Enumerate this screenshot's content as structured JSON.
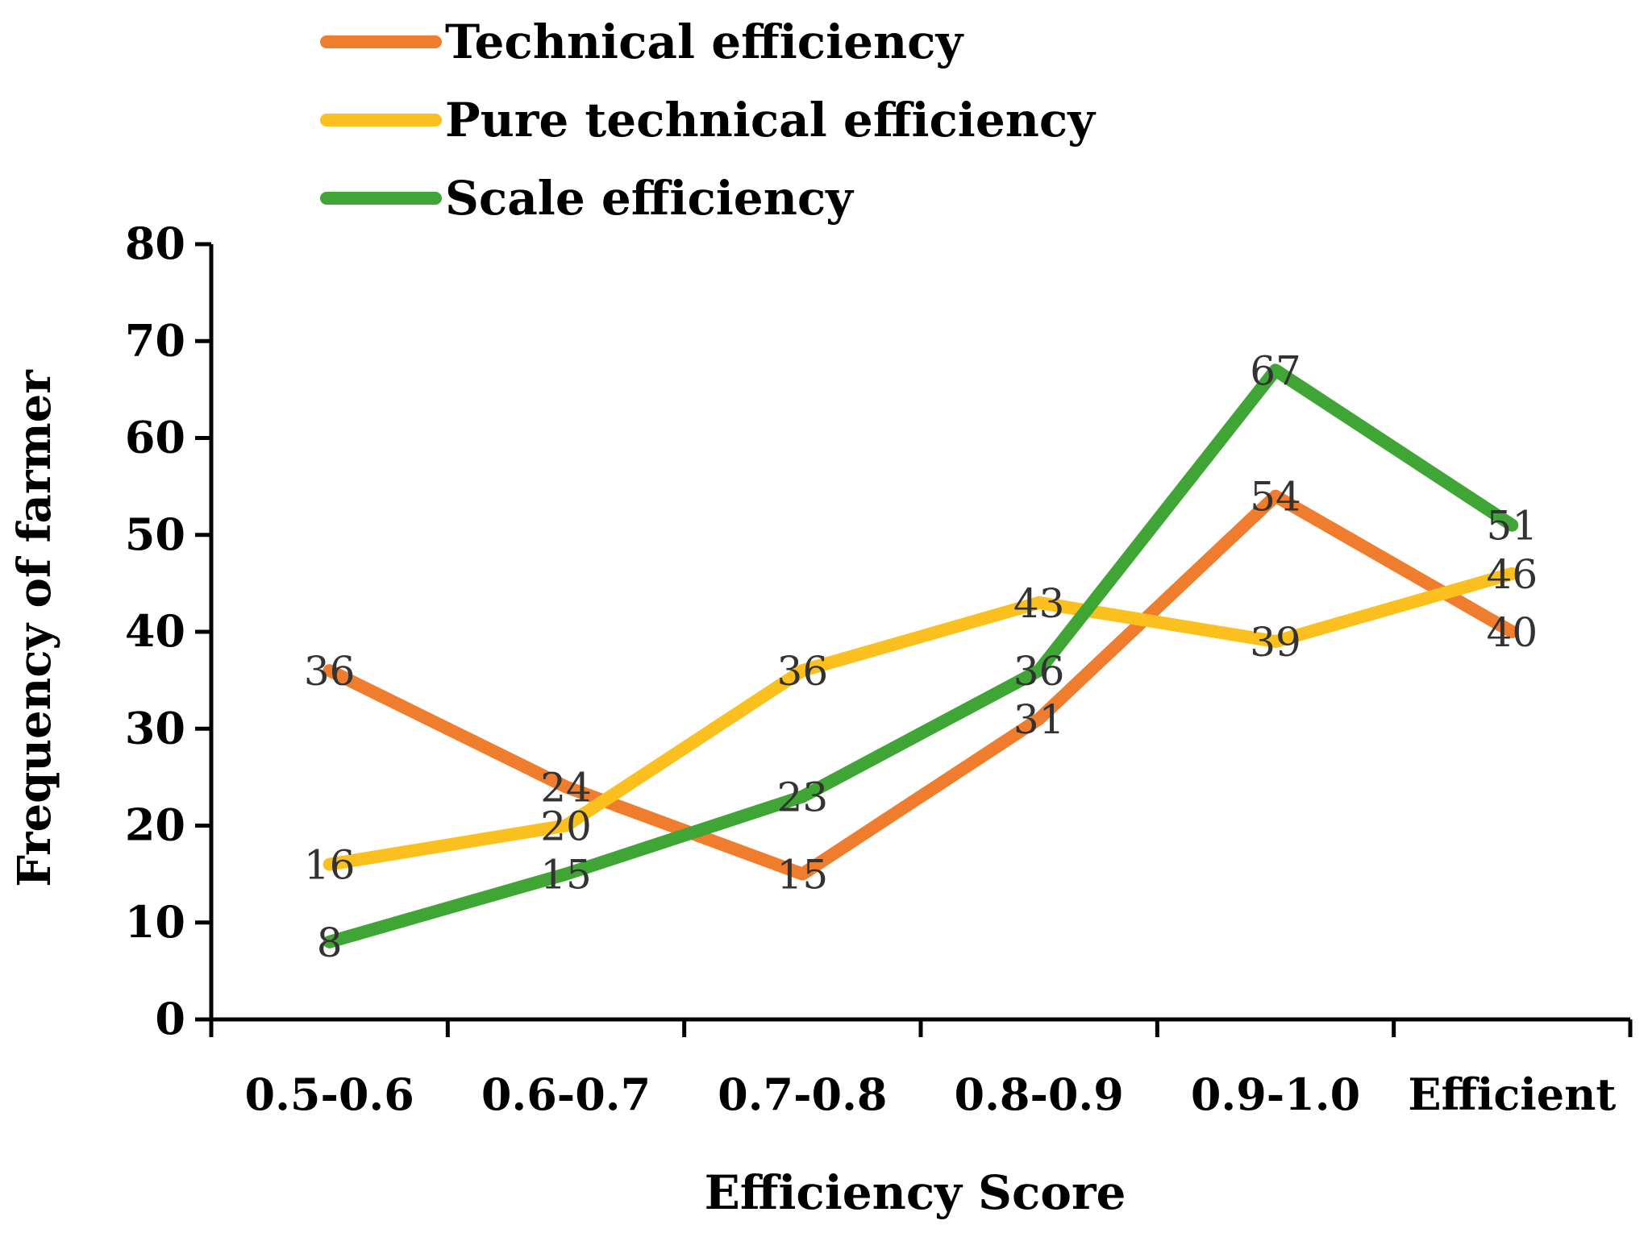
{
  "chart_data": {
    "type": "line",
    "title": "",
    "xlabel": "Efficiency Score",
    "ylabel": "Frequency of farmer",
    "categories": [
      "0.5-0.6",
      "0.6-0.7",
      "0.7-0.8",
      "0.8-0.9",
      "0.9-1.0",
      "Efficient"
    ],
    "ylim": [
      0,
      80
    ],
    "yticks": [
      0,
      10,
      20,
      30,
      40,
      50,
      60,
      70,
      80
    ],
    "grid": false,
    "legend_position": "top-left",
    "series": [
      {
        "name": "Technical efficiency",
        "color": "#F07C2E",
        "values": [
          36,
          24,
          15,
          31,
          54,
          40
        ]
      },
      {
        "name": "Pure technical efficiency",
        "color": "#FBBF1E",
        "values": [
          16,
          20,
          36,
          43,
          39,
          46
        ]
      },
      {
        "name": "Scale efficiency",
        "color": "#3FA535",
        "values": [
          8,
          15,
          23,
          36,
          67,
          51
        ]
      }
    ]
  }
}
